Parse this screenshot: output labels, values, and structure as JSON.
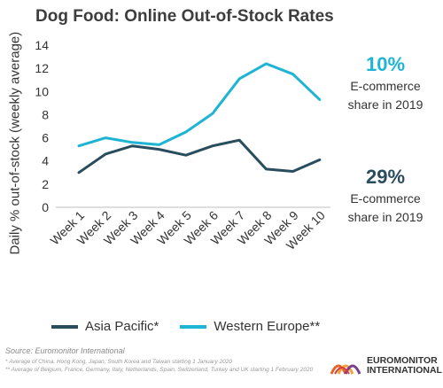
{
  "title": "Dog Food: Online Out-of-Stock Rates",
  "chart_data": {
    "type": "line",
    "categories": [
      "Week 1",
      "Week 2",
      "Week 3",
      "Week 4",
      "Week 5",
      "Week 6",
      "Week 7",
      "Week 8",
      "Week 9",
      "Week 10"
    ],
    "series": [
      {
        "name": "Asia Pacific*",
        "color": "#2a4d5e",
        "values": [
          3.0,
          4.6,
          5.3,
          5.0,
          4.5,
          5.3,
          5.8,
          3.3,
          3.1,
          4.1
        ]
      },
      {
        "name": "Western Europe**",
        "color": "#1eb4d4",
        "values": [
          5.3,
          6.0,
          5.6,
          5.4,
          6.5,
          8.1,
          11.1,
          12.4,
          11.5,
          9.3
        ]
      }
    ],
    "ylabel": "Daily % out-of-stock (weekly average)",
    "ylim": [
      0,
      14
    ],
    "yticks": [
      0,
      2,
      4,
      6,
      8,
      10,
      12,
      14
    ],
    "grid": false
  },
  "callouts": [
    {
      "value": "10%",
      "line1": "E-commerce",
      "line2": "share in 2019",
      "color": "#1eb4d4"
    },
    {
      "value": "29%",
      "line1": "E-commerce",
      "line2": "share in 2019",
      "color": "#2a4d5e"
    }
  ],
  "legend": [
    {
      "label": "Asia Pacific*",
      "color": "#2a4d5e"
    },
    {
      "label": "Western Europe**",
      "color": "#1eb4d4"
    }
  ],
  "source": "Source: Euromonitor International",
  "notes": [
    "* Average of China, Hong Kong, Japan, South Korea and Taiwan starting 1 January 2020",
    "** Average of Belgium, France, Germany, Italy, Netherlands, Spain, Switzerland, Turkey and UK starting 1 February 2020"
  ],
  "logo": {
    "line1": "EUROMONITOR",
    "line2": "INTERNATIONAL"
  }
}
